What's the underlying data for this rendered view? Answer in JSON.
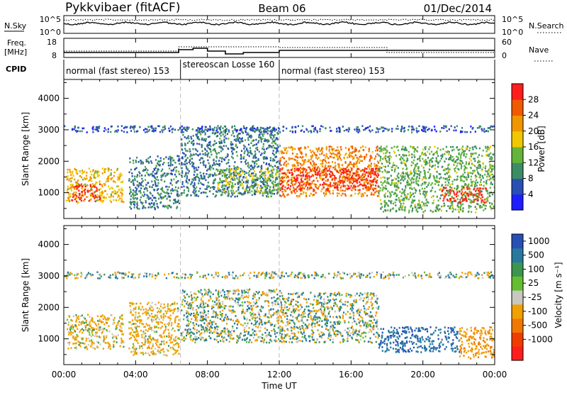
{
  "header": {
    "radar": "Pykkvibaer (fitACF)",
    "beam": "Beam 06",
    "date": "01/Dec/2014"
  },
  "noise_panel": {
    "left_label": "N.Sky",
    "left_ticks": [
      "10^5",
      "10^0"
    ],
    "right_label": "N.Search",
    "right_ticks": [
      "10^5",
      "10^0"
    ]
  },
  "freq_panel": {
    "left_label_1": "Freq.",
    "left_label_2": "[MHz]",
    "left_ticks": [
      "18",
      "8"
    ],
    "right_label": "Nave",
    "right_ticks": [
      "60",
      "0"
    ]
  },
  "cpid": {
    "label": "CPID",
    "segments": [
      {
        "text": "normal (fast stereo) 153",
        "start": 0,
        "end": 6.5
      },
      {
        "text": "stereoscan Losse 160",
        "start": 6.5,
        "end": 12
      },
      {
        "text": "normal (fast stereo) 153",
        "start": 12,
        "end": 24
      }
    ]
  },
  "colors": {
    "power": [
      "#1e1eff",
      "#2850b4",
      "#3c8c64",
      "#64b43c",
      "#f0c800",
      "#f09600",
      "#f05a00",
      "#ff1e1e"
    ],
    "velocity": [
      "#2850b4",
      "#2878a0",
      "#3c9650",
      "#64be32",
      "#c8c8c0",
      "#f0a000",
      "#f07800",
      "#f03c00",
      "#ff1e1e"
    ]
  },
  "power_colorbar": {
    "label": "Power [dB]",
    "ticks": [
      "28",
      "24",
      "20",
      "16",
      "12",
      "8",
      "4"
    ]
  },
  "velocity_colorbar": {
    "label": "Velocity [m s⁻¹]",
    "ticks": [
      "1000",
      "500",
      "100",
      "25",
      "-25",
      "-100",
      "-500",
      "-1000"
    ]
  },
  "x_axis": {
    "label": "Time UT",
    "ticks": [
      "00:00",
      "04:00",
      "08:00",
      "12:00",
      "16:00",
      "20:00",
      "00:00"
    ]
  },
  "chart_data": [
    {
      "type": "heatmap",
      "title": "Power",
      "ylabel": "Slant Range [km]",
      "xlabel": "Time UT",
      "xlim": [
        0,
        24
      ],
      "ylim": [
        180,
        4600
      ],
      "yticks": [
        1000,
        2000,
        3000,
        4000
      ],
      "zlabel": "Power [dB]",
      "zlim": [
        0,
        30
      ],
      "regions": [
        {
          "t0": 0.1,
          "t1": 3.3,
          "r0": 700,
          "r1": 1800,
          "z": 18
        },
        {
          "t0": 0.4,
          "t1": 2.0,
          "r0": 750,
          "r1": 1300,
          "z": 28
        },
        {
          "t0": 3.6,
          "t1": 6.4,
          "r0": 500,
          "r1": 2200,
          "z": 8
        },
        {
          "t0": 6.5,
          "t1": 12.0,
          "r0": 900,
          "r1": 3100,
          "z": 8
        },
        {
          "t0": 8.5,
          "t1": 12.0,
          "r0": 1000,
          "r1": 1800,
          "z": 14
        },
        {
          "t0": 12.0,
          "t1": 17.5,
          "r0": 900,
          "r1": 2500,
          "z": 22
        },
        {
          "t0": 12.0,
          "t1": 17.5,
          "r0": 1100,
          "r1": 1800,
          "z": 28
        },
        {
          "t0": 17.5,
          "t1": 24.0,
          "r0": 400,
          "r1": 2500,
          "z": 12
        },
        {
          "t0": 21.0,
          "t1": 23.5,
          "r0": 700,
          "r1": 1200,
          "z": 28
        },
        {
          "t0": 0.0,
          "t1": 24.0,
          "r0": 2950,
          "r1": 3150,
          "z": 6
        }
      ]
    },
    {
      "type": "heatmap",
      "title": "Velocity",
      "ylabel": "Slant Range [km]",
      "xlabel": "Time UT",
      "xlim": [
        0,
        24
      ],
      "ylim": [
        180,
        4600
      ],
      "yticks": [
        1000,
        2000,
        3000,
        4000
      ],
      "zlabel": "Velocity [m s⁻¹]",
      "zlim": [
        -1000,
        1000
      ],
      "regions": [
        {
          "t0": 0.1,
          "t1": 3.3,
          "r0": 700,
          "r1": 1800,
          "z": -150
        },
        {
          "t0": 3.6,
          "t1": 6.4,
          "r0": 500,
          "r1": 2200,
          "z": -200
        },
        {
          "t0": 6.5,
          "t1": 12.0,
          "r0": 900,
          "r1": 2600,
          "z": 0
        },
        {
          "t0": 12.0,
          "t1": 17.5,
          "r0": 900,
          "r1": 2500,
          "z": 0
        },
        {
          "t0": 17.5,
          "t1": 22.0,
          "r0": 600,
          "r1": 1400,
          "z": 400
        },
        {
          "t0": 22.0,
          "t1": 24.0,
          "r0": 400,
          "r1": 1400,
          "z": -400
        },
        {
          "t0": 0.0,
          "t1": 24.0,
          "r0": 2950,
          "r1": 3150,
          "z": 10
        }
      ]
    }
  ]
}
